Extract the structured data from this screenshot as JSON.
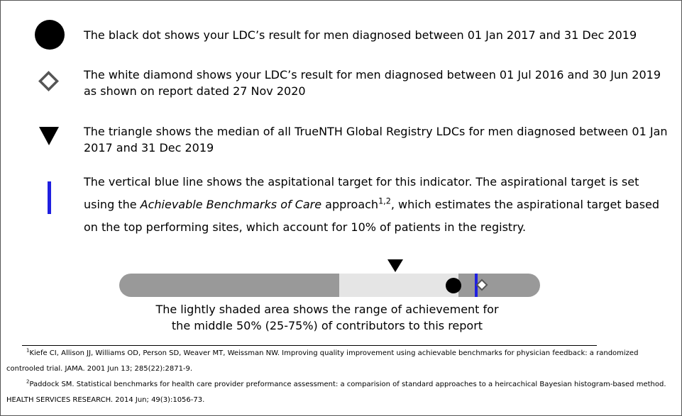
{
  "legend": {
    "items": [
      {
        "text": "The black dot shows your LDC’s result for men diagnosed between 01 Jan 2017 and 31 Dec 2019"
      },
      {
        "text": "The white diamond shows your LDC’s result for men diagnosed between 01 Jul 2016 and 30 Jun 2019 as shown on report dated 27 Nov 2020"
      },
      {
        "text": "The triangle shows the median of all TrueNTH Global Registry LDCs for men diagnosed between 01 Jan 2017 and 31 Dec 2019"
      },
      {
        "parts": [
          "The vertical blue line shows the aspitational target for this indicator. The aspirational target is set using the ",
          "Achievable Benchmarks of Care",
          " approach",
          "1,2",
          ", which estimates the aspirational target based on the top performing sites, which account for 10% of patients in the registry."
        ]
      }
    ]
  },
  "caption": {
    "lines": [
      "The lightly shaded area shows the range of achievement for",
      "the middle 50% (25-75%) of contributors to this report"
    ]
  },
  "footnotes": [
    {
      "marker": "1",
      "text": "Kiefe CI, Allison JJ, Williams OD, Person SD, Weaver MT, Weissman NW. Improving quality improvement using achievable benchmarks for physician feedback: a randomized controoled trial. JAMA. 2001 Jun 13; 285(22):2871-9."
    },
    {
      "marker": "2",
      "text": "Paddock SM. Statistical benchmarks for health care provider preformance assessment: a comparision of standard approaches to a heircachical Bayesian histogram-based method. HEALTH SERVICES RESEARCH. 2014 Jun; 49(3):1056-73."
    }
  ]
}
